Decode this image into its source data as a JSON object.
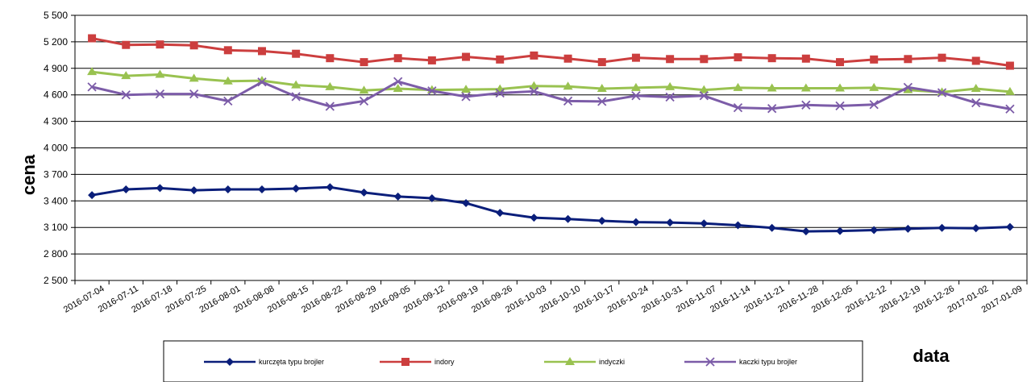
{
  "chart_data": {
    "type": "line",
    "xlabel": "data",
    "ylabel": "cena",
    "ylim": [
      2500,
      5500
    ],
    "yticks": [
      2500,
      2800,
      3100,
      3400,
      3700,
      4000,
      4300,
      4600,
      4900,
      5200,
      5500
    ],
    "ytick_labels": [
      "2 500",
      "2 800",
      "3 100",
      "3 400",
      "3 700",
      "4 000",
      "4 300",
      "4 600",
      "4 900",
      "5 200",
      "5 500"
    ],
    "grid": "horizontal",
    "legend_position": "bottom",
    "x": [
      "2016-07-04",
      "2016-07-11",
      "2016-07-18",
      "2016-07-25",
      "2016-08-01",
      "2016-08-08",
      "2016-08-15",
      "2016-08-22",
      "2016-08-29",
      "2016-09-05",
      "2016-09-12",
      "2016-09-19",
      "2016-09-26",
      "2016-10-03",
      "2016-10-10",
      "2016-10-17",
      "2016-10-24",
      "2016-10-31",
      "2016-11-07",
      "2016-11-14",
      "2016-11-21",
      "2016-11-28",
      "2016-12-05",
      "2016-12-12",
      "2016-12-19",
      "2016-12-26",
      "2017-01-02",
      "2017-01-09"
    ],
    "series": [
      {
        "name": "kurczęta typu brojler",
        "color": "#0a1e7a",
        "marker": "diamond",
        "values": [
          3465,
          3530,
          3545,
          3520,
          3530,
          3530,
          3540,
          3555,
          3495,
          3450,
          3430,
          3375,
          3265,
          3210,
          3195,
          3175,
          3160,
          3155,
          3145,
          3125,
          3095,
          3055,
          3060,
          3070,
          3085,
          3095,
          3090,
          3105
        ]
      },
      {
        "name": "indory",
        "color": "#cc3e3e",
        "marker": "square",
        "values": [
          5240,
          5165,
          5170,
          5160,
          5105,
          5095,
          5065,
          5015,
          4970,
          5015,
          4990,
          5030,
          5000,
          5045,
          5010,
          4970,
          5020,
          5005,
          5005,
          5025,
          5015,
          5010,
          4970,
          5000,
          5005,
          5020,
          4985,
          4930
        ]
      },
      {
        "name": "indyczki",
        "color": "#99c250",
        "marker": "triangle",
        "values": [
          4860,
          4815,
          4830,
          4785,
          4755,
          4760,
          4710,
          4690,
          4650,
          4670,
          4655,
          4660,
          4665,
          4700,
          4695,
          4670,
          4680,
          4690,
          4655,
          4680,
          4675,
          4675,
          4675,
          4680,
          4655,
          4630,
          4670,
          4635
        ]
      },
      {
        "name": "kaczki typu brojler",
        "color": "#7c5ca8",
        "marker": "x",
        "values": [
          4690,
          4600,
          4610,
          4610,
          4530,
          4745,
          4580,
          4470,
          4530,
          4750,
          4645,
          4580,
          4620,
          4640,
          4530,
          4525,
          4590,
          4575,
          4590,
          4455,
          4445,
          4485,
          4475,
          4490,
          4685,
          4625,
          4510,
          4440
        ]
      }
    ]
  }
}
